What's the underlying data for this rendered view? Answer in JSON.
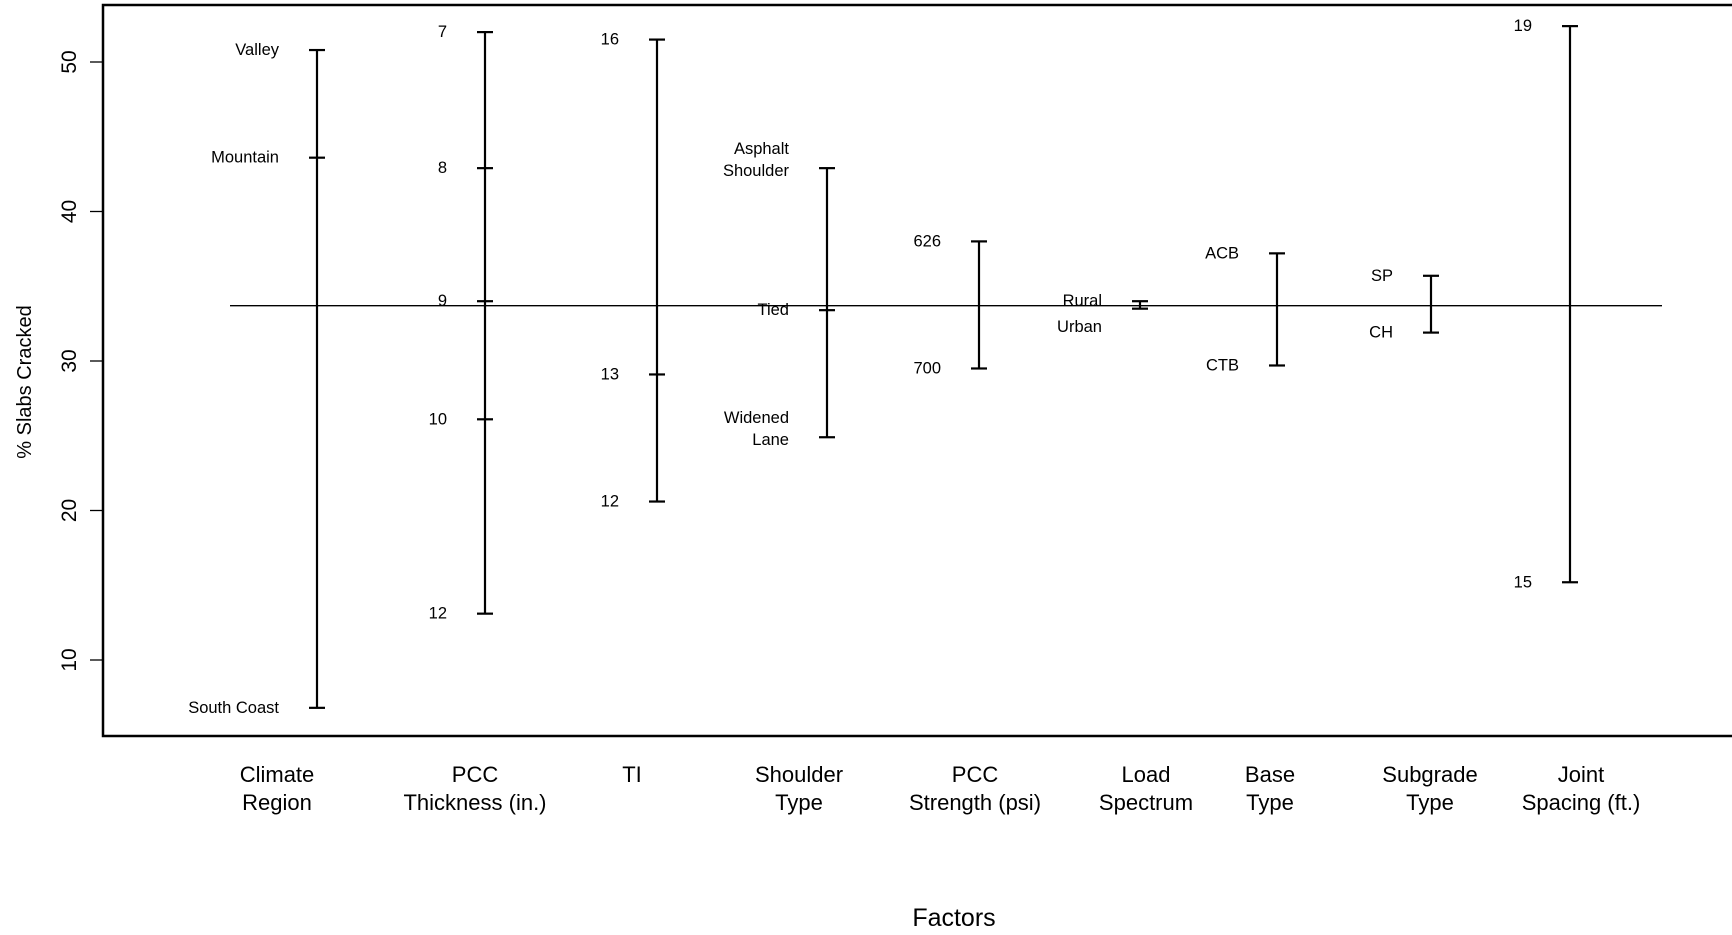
{
  "chart_data": {
    "type": "interval",
    "title": "",
    "xlabel": "Factors",
    "ylabel": "% Slabs Cracked",
    "ylim": [
      5,
      54
    ],
    "yticks": [
      10,
      20,
      30,
      40,
      50
    ],
    "reference_line": 33.7,
    "factors": [
      {
        "name": "Climate Region",
        "name_lines": [
          "Climate",
          "Region"
        ],
        "levels": [
          {
            "label": [
              "Valley"
            ],
            "value": 50.8
          },
          {
            "label": [
              "Mountain"
            ],
            "value": 43.6
          },
          {
            "label": [
              "South Coast"
            ],
            "value": 6.8
          }
        ]
      },
      {
        "name": "PCC Thickness (in.)",
        "name_lines": [
          "PCC",
          "Thickness (in.)"
        ],
        "levels": [
          {
            "label": [
              "7"
            ],
            "value": 52.0
          },
          {
            "label": [
              "8"
            ],
            "value": 42.9
          },
          {
            "label": [
              "9"
            ],
            "value": 34.0
          },
          {
            "label": [
              "10"
            ],
            "value": 26.1
          },
          {
            "label": [
              "12"
            ],
            "value": 13.1
          }
        ]
      },
      {
        "name": "TI",
        "name_lines": [
          "TI"
        ],
        "levels": [
          {
            "label": [
              "16"
            ],
            "value": 51.5
          },
          {
            "label": [
              "13"
            ],
            "value": 29.1
          },
          {
            "label": [
              "12"
            ],
            "value": 20.6
          }
        ]
      },
      {
        "name": "Shoulder Type",
        "name_lines": [
          "Shoulder",
          "Type"
        ],
        "levels": [
          {
            "label": [
              "Asphalt",
              "Shoulder"
            ],
            "value": 42.9
          },
          {
            "label": [
              "Tied"
            ],
            "value": 33.4
          },
          {
            "label": [
              "Widened",
              "Lane"
            ],
            "value": 24.9
          }
        ]
      },
      {
        "name": "PCC Strength (psi)",
        "name_lines": [
          "PCC",
          "Strength (psi)"
        ],
        "levels": [
          {
            "label": [
              "626"
            ],
            "value": 38.0
          },
          {
            "label": [
              "700"
            ],
            "value": 29.5
          }
        ]
      },
      {
        "name": "Load Spectrum",
        "name_lines": [
          "Load",
          "Spectrum"
        ],
        "levels": [
          {
            "label": [
              "Rural"
            ],
            "value": 34.0
          },
          {
            "label": [
              "Urban"
            ],
            "value": 33.5
          }
        ]
      },
      {
        "name": "Base Type",
        "name_lines": [
          "Base",
          "Type"
        ],
        "levels": [
          {
            "label": [
              "ACB"
            ],
            "value": 37.2
          },
          {
            "label": [
              "CTB"
            ],
            "value": 29.7
          }
        ]
      },
      {
        "name": "Subgrade Type",
        "name_lines": [
          "Subgrade",
          "Type"
        ],
        "levels": [
          {
            "label": [
              "SP"
            ],
            "value": 35.7
          },
          {
            "label": [
              "CH"
            ],
            "value": 31.9
          }
        ]
      },
      {
        "name": "Joint Spacing (ft.)",
        "name_lines": [
          "Joint",
          "Spacing (ft.)"
        ],
        "levels": [
          {
            "label": [
              "19"
            ],
            "value": 52.4
          },
          {
            "label": [
              "15"
            ],
            "value": 15.2
          }
        ]
      }
    ]
  }
}
